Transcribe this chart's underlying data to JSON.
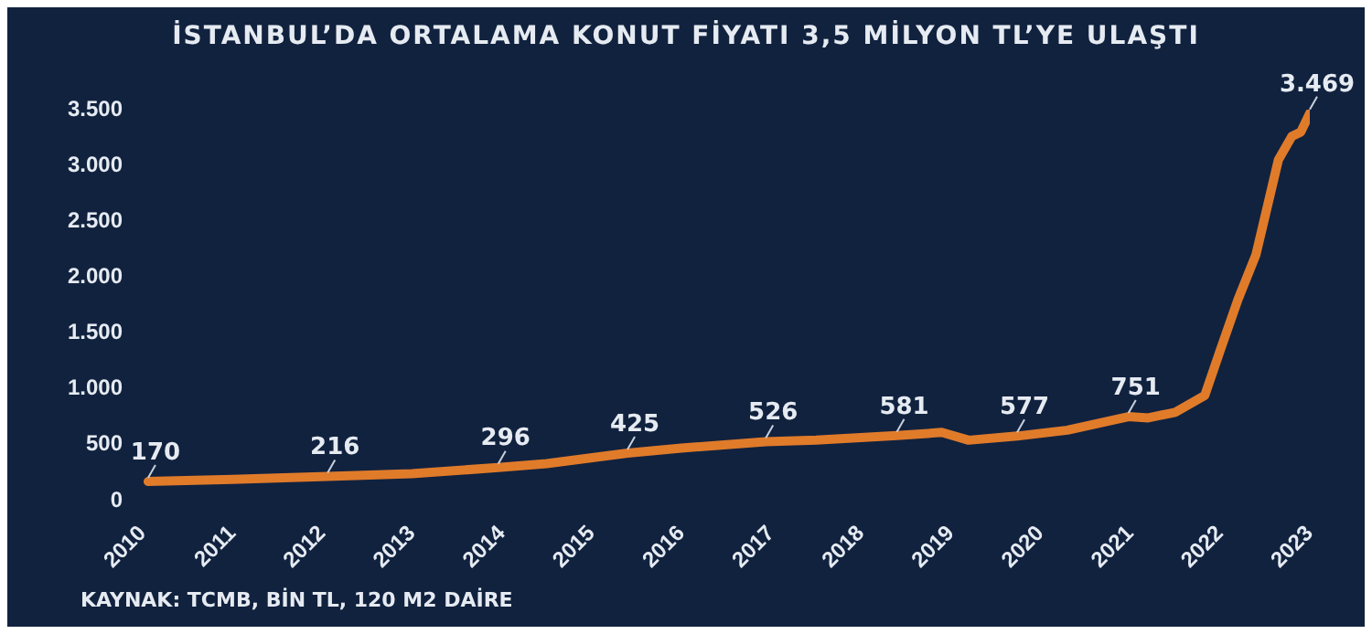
{
  "chart_data": {
    "type": "line",
    "title": "İSTANBUL’DA ORTALAMA KONUT FİYATI 3,5 MİLYON TL’YE ULAŞTI",
    "annotations": [
      "KAYNAK: TCMB, BİN TL, 120 M2 DAİRE"
    ],
    "x": [
      2010.06,
      2011,
      2012.06,
      2013,
      2013.96,
      2014.5,
      2015.4,
      2016,
      2016.94,
      2017.5,
      2018.4,
      2018.9,
      2019.2,
      2019.74,
      2020.3,
      2020.98,
      2021.2,
      2021.5,
      2021.83,
      2022,
      2022.2,
      2022.4,
      2022.65,
      2022.8,
      2022.9,
      2023
    ],
    "series": [
      {
        "color": "#e07b2a",
        "values": [
          170,
          190,
          216,
          240,
          296,
          330,
          425,
          470,
          526,
          540,
          581,
          610,
          540,
          577,
          630,
          751,
          740,
          790,
          940,
          1340,
          1800,
          2200,
          3050,
          3260,
          3300,
          3469
        ],
        "value_labels": [
          "170",
          null,
          "216",
          null,
          "296",
          null,
          "425",
          null,
          "526",
          null,
          "581",
          null,
          null,
          "577",
          null,
          "751",
          null,
          null,
          null,
          null,
          null,
          null,
          null,
          null,
          null,
          "3.469"
        ]
      }
    ],
    "xlim": [
      2010,
      2023
    ],
    "xticks": [
      2010,
      2011,
      2012,
      2013,
      2014,
      2015,
      2016,
      2017,
      2018,
      2019,
      2020,
      2021,
      2022,
      2023
    ],
    "ylim": [
      0,
      3500
    ],
    "yticks": [
      0,
      500,
      {
        "value": 1000,
        "label": "1.000"
      },
      {
        "value": 1500,
        "label": "1.500"
      },
      {
        "value": 2000,
        "label": "2.000"
      },
      {
        "value": 2500,
        "label": "2.500"
      },
      {
        "value": 3000,
        "label": "3.000"
      },
      {
        "value": 3500,
        "label": "3.500"
      }
    ],
    "grid": false,
    "legend": false,
    "marker": "none",
    "line_style": "solid"
  }
}
